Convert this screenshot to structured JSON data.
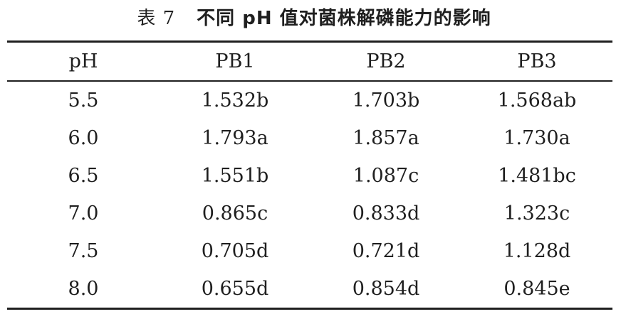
{
  "caption": {
    "label": "表 7",
    "title": "不同 pH 值对菌株解磷能力的影响"
  },
  "table": {
    "headers": [
      "pH",
      "PB1",
      "PB2",
      "PB3"
    ],
    "rows": [
      [
        "5.5",
        "1.532b",
        "1.703b",
        "1.568ab"
      ],
      [
        "6.0",
        "1.793a",
        "1.857a",
        "1.730a"
      ],
      [
        "6.5",
        "1.551b",
        "1.087c",
        "1.481bc"
      ],
      [
        "7.0",
        "0.865c",
        "0.833d",
        "1.323c"
      ],
      [
        "7.5",
        "0.705d",
        "0.721d",
        "1.128d"
      ],
      [
        "8.0",
        "0.655d",
        "0.854d",
        "0.845e"
      ]
    ]
  }
}
